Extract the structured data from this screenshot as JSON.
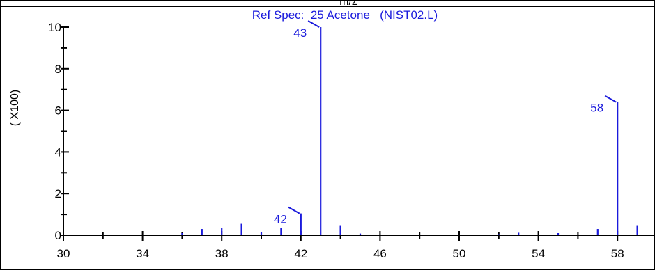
{
  "chart_data": {
    "type": "bar",
    "top_label": "m/z",
    "title": "Ref Spec:  25 Acetone   (NIST02.L)",
    "ylabel": "( X100)",
    "xlim": [
      30,
      60
    ],
    "ylim": [
      0,
      10
    ],
    "x_ticks": [
      30,
      34,
      38,
      42,
      46,
      50,
      54,
      58
    ],
    "y_ticks": [
      0,
      2,
      4,
      6,
      8,
      10
    ],
    "peaks": [
      {
        "mz": 36,
        "intensity": 0.1
      },
      {
        "mz": 37,
        "intensity": 0.3
      },
      {
        "mz": 38,
        "intensity": 0.35
      },
      {
        "mz": 39,
        "intensity": 0.55
      },
      {
        "mz": 40,
        "intensity": 0.15
      },
      {
        "mz": 41,
        "intensity": 0.35
      },
      {
        "mz": 42,
        "intensity": 1.05
      },
      {
        "mz": 43,
        "intensity": 10.0
      },
      {
        "mz": 44,
        "intensity": 0.45
      },
      {
        "mz": 45,
        "intensity": 0.08
      },
      {
        "mz": 52,
        "intensity": 0.05
      },
      {
        "mz": 53,
        "intensity": 0.12
      },
      {
        "mz": 55,
        "intensity": 0.1
      },
      {
        "mz": 57,
        "intensity": 0.3
      },
      {
        "mz": 58,
        "intensity": 6.4
      },
      {
        "mz": 59,
        "intensity": 0.45
      },
      {
        "mz": 60,
        "intensity": 0.05
      }
    ],
    "peak_labels": [
      {
        "mz": 42,
        "text": "42",
        "side": "left"
      },
      {
        "mz": 43,
        "text": "43",
        "side": "left"
      },
      {
        "mz": 58,
        "text": "58",
        "side": "left"
      }
    ],
    "colors": {
      "peaks": "#1a1adc",
      "axes": "#000000"
    }
  }
}
